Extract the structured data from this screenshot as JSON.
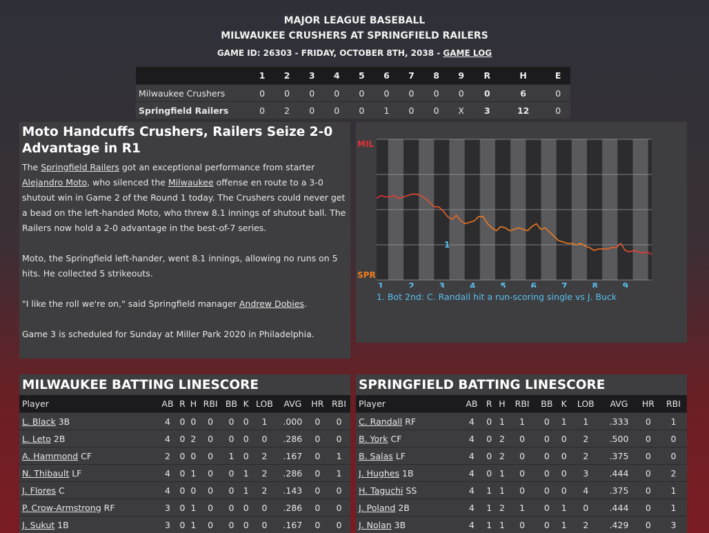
{
  "header": {
    "league": "MAJOR LEAGUE BASEBALL",
    "matchup": "MILWAUKEE CRUSHERS AT SPRINGFIELD RAILERS",
    "game_info": "GAME ID: 26303 - FRIDAY, OCTOBER 8TH, 2038 - ",
    "game_log_link": "GAME LOG"
  },
  "linescore": {
    "columns": [
      "1",
      "2",
      "3",
      "4",
      "5",
      "6",
      "7",
      "8",
      "9",
      "R",
      "H",
      "E"
    ],
    "rows": [
      {
        "team": "Milwaukee Crushers",
        "cells": [
          "0",
          "0",
          "0",
          "0",
          "0",
          "0",
          "0",
          "0",
          "0",
          "0",
          "6",
          "0"
        ]
      },
      {
        "team": "Springfield Railers",
        "cells": [
          "0",
          "2",
          "0",
          "0",
          "0",
          "1",
          "0",
          "0",
          "X",
          "3",
          "12",
          "0"
        ]
      }
    ]
  },
  "story": {
    "headline": "Moto Handcuffs Crushers, Railers Seize 2-0 Advantage in R1",
    "p1_a": "The ",
    "p1_link1": "Springfield Railers",
    "p1_b": " got an exceptional performance from starter ",
    "p1_link2": "Alejandro Moto",
    "p1_c": ", who silenced the ",
    "p1_link3": "Milwaukee",
    "p1_d": " offense en route to a 3-0 shutout win in Game 2 of the Round 1 today. The Crushers could never get a bead on the left-handed Moto, who threw 8.1 innings of shutout ball. The Railers now hold a 2-0 advantage in the best-of-7 series.",
    "p2": "Moto, the Springfield left-hander, went 8.1 innings, allowing no runs on 5 hits. He collected 5 strikeouts.",
    "p3_a": "\"I like the roll we're on,\" said Springfield manager ",
    "p3_link": "Andrew Dobies",
    "p3_b": ".",
    "p4": "Game 3 is scheduled for Sunday at Miller Park 2020 in Philadelphia."
  },
  "win_prob": {
    "top_label": "MIL",
    "bottom_label": "SPR",
    "innings": [
      "1",
      "2",
      "3",
      "4",
      "5",
      "6",
      "7",
      "8",
      "9"
    ],
    "marker_label": "1",
    "note": "1. Bot 2nd: C. Randall hit a run-scoring single vs J. Buck",
    "colors": {
      "mil": "#e0303a",
      "spr": "#f07c1d",
      "innings": "#5bc0f0"
    },
    "series": [
      0.58,
      0.6,
      0.59,
      0.59,
      0.6,
      0.58,
      0.59,
      0.6,
      0.61,
      0.61,
      0.6,
      0.58,
      0.55,
      0.52,
      0.52,
      0.49,
      0.45,
      0.43,
      0.46,
      0.42,
      0.4,
      0.41,
      0.42,
      0.45,
      0.45,
      0.4,
      0.37,
      0.35,
      0.38,
      0.37,
      0.35,
      0.36,
      0.37,
      0.36,
      0.35,
      0.38,
      0.4,
      0.36,
      0.37,
      0.34,
      0.31,
      0.28,
      0.27,
      0.26,
      0.26,
      0.25,
      0.26,
      0.24,
      0.23,
      0.21,
      0.22,
      0.22,
      0.22,
      0.23,
      0.23,
      0.26,
      0.21,
      0.2,
      0.21,
      0.2,
      0.19,
      0.2,
      0.18
    ]
  },
  "batting_mil": {
    "title": "MILWAUKEE BATTING LINESCORE",
    "columns": [
      "Player",
      "AB",
      "R",
      "H",
      "RBI",
      "BB",
      "K",
      "LOB",
      "AVG",
      "HR",
      "RBI"
    ],
    "rows": [
      {
        "name": "L. Black",
        "pos": " 3B",
        "stats": [
          "4",
          "0",
          "0",
          "0",
          "0",
          "0",
          "1",
          ".000",
          "0",
          "0"
        ]
      },
      {
        "name": "L. Leto",
        "pos": " 2B",
        "stats": [
          "4",
          "0",
          "2",
          "0",
          "0",
          "0",
          "0",
          ".286",
          "0",
          "0"
        ]
      },
      {
        "name": "A. Hammond",
        "pos": " CF",
        "stats": [
          "2",
          "0",
          "0",
          "0",
          "1",
          "0",
          "2",
          ".167",
          "0",
          "1"
        ]
      },
      {
        "name": "N. Thibault",
        "pos": " LF",
        "stats": [
          "4",
          "0",
          "1",
          "0",
          "0",
          "1",
          "2",
          ".286",
          "0",
          "1"
        ]
      },
      {
        "name": "J. Flores",
        "pos": " C",
        "stats": [
          "4",
          "0",
          "0",
          "0",
          "0",
          "1",
          "2",
          ".143",
          "0",
          "0"
        ]
      },
      {
        "name": "P. Crow-Armstrong",
        "pos": " RF",
        "stats": [
          "3",
          "0",
          "1",
          "0",
          "0",
          "0",
          "0",
          ".286",
          "0",
          "0"
        ]
      },
      {
        "name": "J. Sukut",
        "pos": " 1B",
        "stats": [
          "3",
          "0",
          "1",
          "0",
          "0",
          "0",
          "0",
          ".167",
          "0",
          "0"
        ]
      }
    ]
  },
  "batting_spr": {
    "title": "SPRINGFIELD BATTING LINESCORE",
    "columns": [
      "Player",
      "AB",
      "R",
      "H",
      "RBI",
      "BB",
      "K",
      "LOB",
      "AVG",
      "HR",
      "RBI"
    ],
    "rows": [
      {
        "name": "C. Randall",
        "pos": " RF",
        "stats": [
          "4",
          "0",
          "1",
          "1",
          "0",
          "1",
          "1",
          ".333",
          "0",
          "1"
        ]
      },
      {
        "name": "B. York",
        "pos": " CF",
        "stats": [
          "4",
          "0",
          "2",
          "0",
          "0",
          "0",
          "2",
          ".500",
          "0",
          "0"
        ]
      },
      {
        "name": "B. Salas",
        "pos": " LF",
        "stats": [
          "4",
          "0",
          "2",
          "0",
          "0",
          "0",
          "2",
          ".375",
          "0",
          "0"
        ]
      },
      {
        "name": "J. Hughes",
        "pos": " 1B",
        "stats": [
          "4",
          "0",
          "1",
          "0",
          "0",
          "0",
          "3",
          ".444",
          "0",
          "2"
        ]
      },
      {
        "name": "H. Taguchi",
        "pos": " SS",
        "stats": [
          "4",
          "1",
          "1",
          "0",
          "0",
          "0",
          "4",
          ".375",
          "0",
          "1"
        ]
      },
      {
        "name": "J. Poland",
        "pos": " 2B",
        "stats": [
          "4",
          "1",
          "2",
          "1",
          "0",
          "1",
          "0",
          ".444",
          "0",
          "1"
        ]
      },
      {
        "name": "J. Nolan",
        "pos": " 3B",
        "stats": [
          "4",
          "1",
          "1",
          "0",
          "0",
          "1",
          "2",
          ".429",
          "0",
          "3"
        ]
      }
    ]
  }
}
